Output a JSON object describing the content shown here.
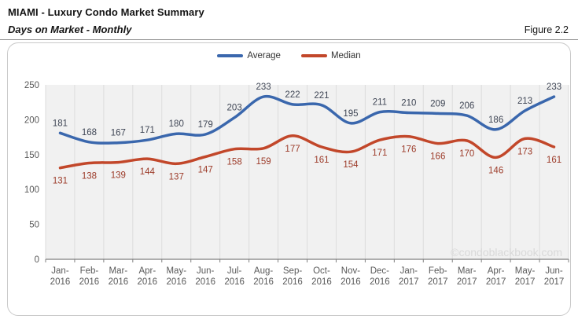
{
  "header": {
    "title": "MIAMI - Luxury Condo Market Summary",
    "subtitle": "Days on Market - Monthly",
    "figure_label": "Figure 2.2"
  },
  "legend": [
    {
      "label": "Average",
      "color": "#3a67ad"
    },
    {
      "label": "Median",
      "color": "#c2472a"
    }
  ],
  "watermark": "©condoblackbook.com",
  "chart_data": {
    "type": "line",
    "title": "Days on Market - Monthly",
    "xlabel": "",
    "ylabel": "",
    "categories": [
      "Jan-2016",
      "Feb-2016",
      "Mar-2016",
      "Apr-2016",
      "May-2016",
      "Jun-2016",
      "Jul-2016",
      "Aug-2016",
      "Sep-2016",
      "Oct-2016",
      "Nov-2016",
      "Dec-2016",
      "Jan-2017",
      "Feb-2017",
      "Mar-2017",
      "Apr-2017",
      "May-2017",
      "Jun-2017"
    ],
    "series": [
      {
        "name": "Average",
        "color": "#3a67ad",
        "label_color": "#3f4655",
        "label_position": "above",
        "values": [
          181,
          168,
          167,
          171,
          180,
          179,
          203,
          233,
          222,
          221,
          195,
          211,
          210,
          209,
          206,
          186,
          213,
          233
        ]
      },
      {
        "name": "Median",
        "color": "#c2472a",
        "label_color": "#9c3a28",
        "label_position": "below",
        "values": [
          131,
          138,
          139,
          144,
          137,
          147,
          158,
          159,
          177,
          161,
          154,
          171,
          176,
          166,
          170,
          146,
          173,
          161
        ]
      }
    ],
    "ylim": [
      0,
      250
    ],
    "yticks": [
      0,
      50,
      100,
      150,
      200,
      250
    ],
    "grid": "vertical-only",
    "legend_position": "top-center",
    "plot_bg": "#f1f1f1",
    "gridline_color": "#dcdcdc",
    "axis_color": "#7f7f7f",
    "tick_label_color": "#595959",
    "watermark_color": "#d9d9d9"
  }
}
